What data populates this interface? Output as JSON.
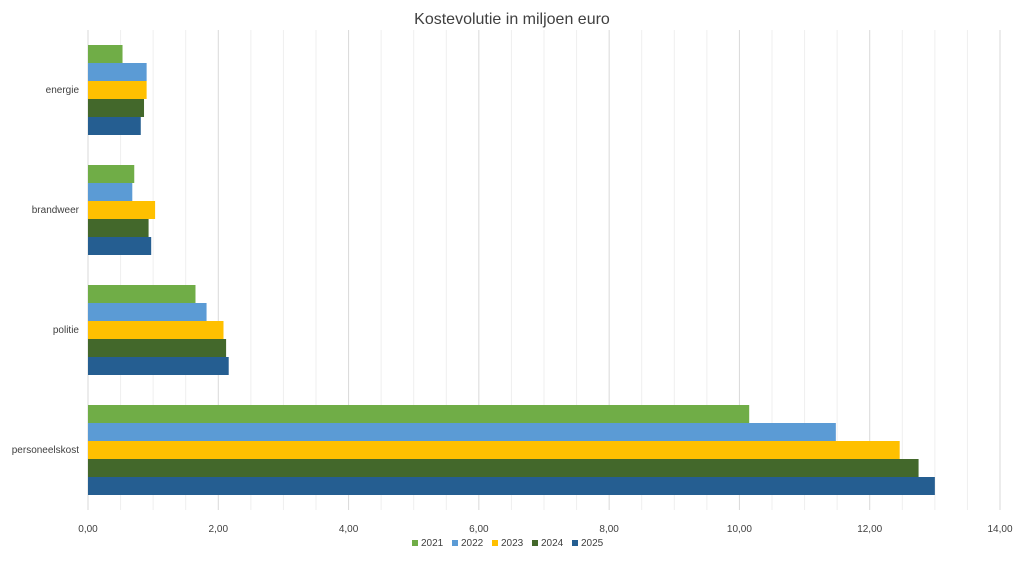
{
  "chart_data": {
    "type": "bar",
    "orientation": "horizontal",
    "title": "Kostevolutie in miljoen euro",
    "xlabel": "",
    "ylabel": "",
    "xlim": [
      0,
      14
    ],
    "x_ticks": [
      "0,00",
      "2,00",
      "4,00",
      "6,00",
      "8,00",
      "10,00",
      "12,00",
      "14,00"
    ],
    "grid": true,
    "legend": "bottom",
    "categories": [
      "energie",
      "brandweer",
      "politie",
      "personeelskost"
    ],
    "series": [
      {
        "name": "2021",
        "color": "#70ad47",
        "values": [
          0.53,
          0.71,
          1.65,
          10.15
        ]
      },
      {
        "name": "2022",
        "color": "#5b9bd5",
        "values": [
          0.9,
          0.68,
          1.82,
          11.48
        ]
      },
      {
        "name": "2023",
        "color": "#ffc000",
        "values": [
          0.9,
          1.03,
          2.08,
          12.46
        ]
      },
      {
        "name": "2024",
        "color": "#43682b",
        "values": [
          0.86,
          0.93,
          2.12,
          12.75
        ]
      },
      {
        "name": "2025",
        "color": "#255e91",
        "values": [
          0.81,
          0.97,
          2.16,
          13.0
        ]
      }
    ]
  }
}
